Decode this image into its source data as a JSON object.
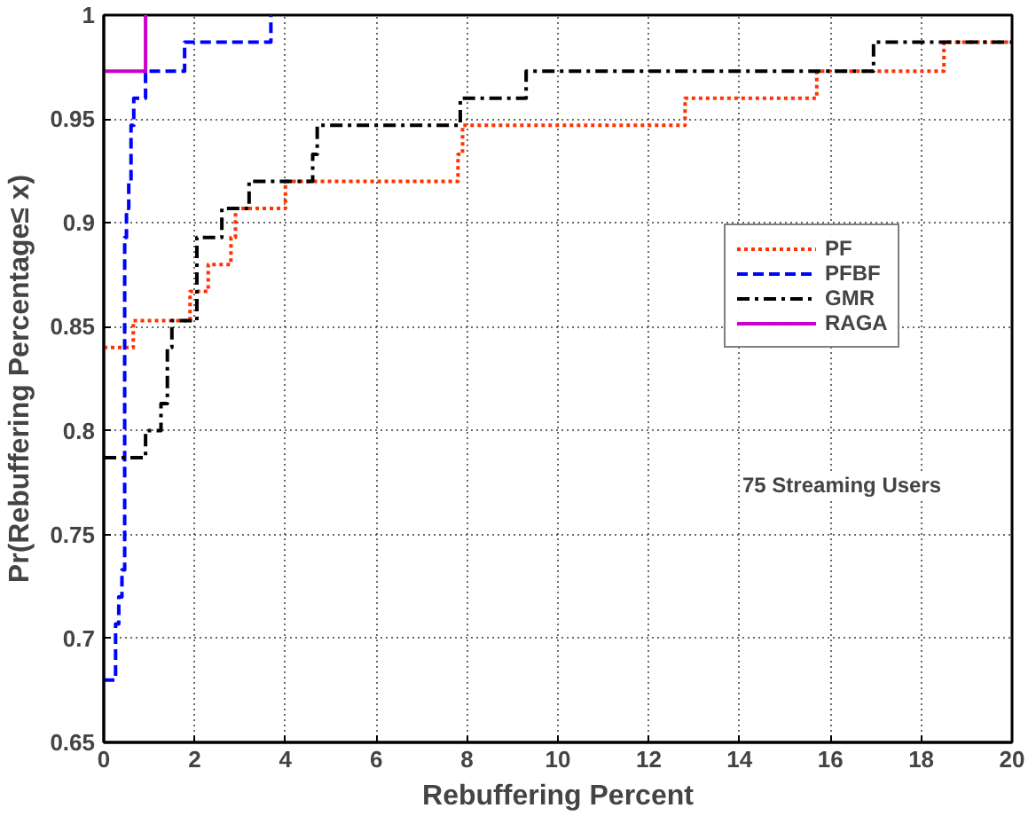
{
  "chart_data": {
    "type": "step",
    "xlabel": "Rebuffering Percent",
    "ylabel": "Pr(Rebuffering Percentage≤ x)",
    "xlim": [
      0,
      20
    ],
    "ylim": [
      0.65,
      1
    ],
    "xticks": [
      0,
      2,
      4,
      6,
      8,
      10,
      12,
      14,
      16,
      18,
      20
    ],
    "yticks": [
      0.65,
      0.7,
      0.75,
      0.8,
      0.85,
      0.9,
      0.95,
      1
    ],
    "grid": true,
    "legend": "right",
    "annotations": [
      "75 Streaming Users"
    ],
    "series": [
      {
        "name": "PF",
        "color": "#ff3300",
        "line_style": "dotted",
        "x": [
          0,
          0.65,
          1.9,
          2.3,
          2.8,
          2.9,
          4.0,
          7.8,
          7.9,
          12.8,
          15.7,
          18.5,
          20
        ],
        "values": [
          0.84,
          0.853,
          0.867,
          0.88,
          0.893,
          0.907,
          0.92,
          0.933,
          0.947,
          0.96,
          0.973,
          0.987,
          0.987
        ]
      },
      {
        "name": "PFBF",
        "color": "#0000ff",
        "line_style": "dashed",
        "x": [
          0,
          0.26,
          0.33,
          0.4,
          0.46,
          0.5,
          0.55,
          0.6,
          0.66,
          0.92,
          1.78,
          3.68
        ],
        "values": [
          0.68,
          0.707,
          0.72,
          0.733,
          0.893,
          0.907,
          0.92,
          0.947,
          0.96,
          0.973,
          0.987,
          1.0
        ]
      },
      {
        "name": "GMR",
        "color": "#000000",
        "line_style": "dashdot",
        "x": [
          0,
          0.92,
          1.26,
          1.4,
          1.5,
          2.05,
          2.6,
          3.2,
          4.6,
          4.7,
          7.85,
          9.3,
          16.95,
          20
        ],
        "values": [
          0.787,
          0.8,
          0.813,
          0.84,
          0.853,
          0.893,
          0.907,
          0.92,
          0.933,
          0.947,
          0.96,
          0.973,
          0.987,
          0.987
        ]
      },
      {
        "name": "RAGA",
        "color": "#cc00cc",
        "line_style": "solid",
        "x": [
          0,
          0.92
        ],
        "values": [
          0.973,
          1.0
        ]
      }
    ]
  }
}
